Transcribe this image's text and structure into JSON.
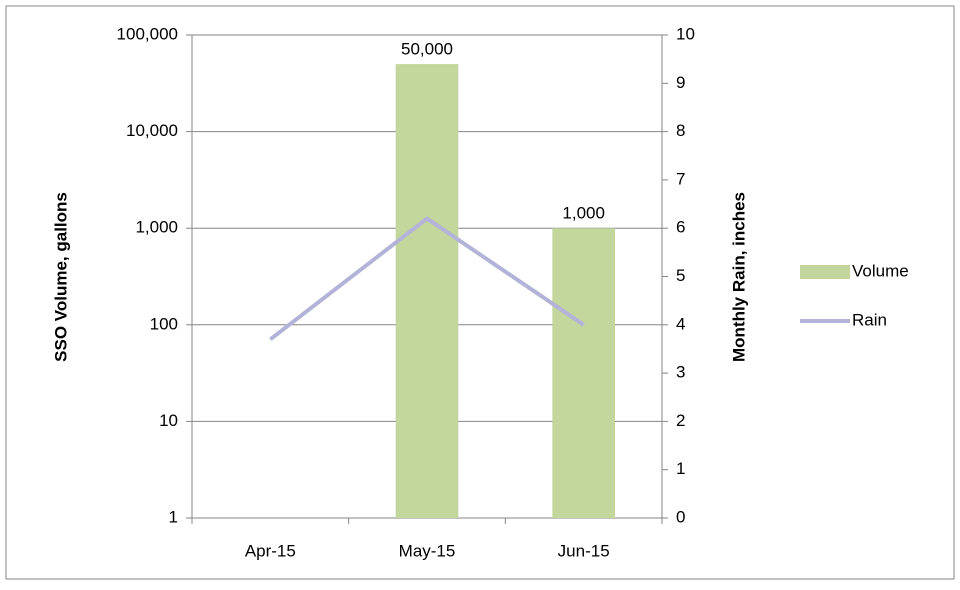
{
  "chart_data": {
    "type": "bar",
    "categories": [
      "Apr-15",
      "May-15",
      "Jun-15"
    ],
    "ylabel": "SSO Volume, gallons",
    "y2label": "Monthly Rain, inches",
    "ylim": [
      1,
      100000
    ],
    "log_scale": true,
    "yticks": [
      1,
      10,
      100,
      {
        "value": 1000,
        "label": "1,000"
      },
      {
        "value": 10000,
        "label": "10,000"
      },
      {
        "value": 100000,
        "label": "100,000"
      }
    ],
    "y2lim": [
      0,
      10
    ],
    "y2ticks": [
      0,
      1,
      2,
      3,
      4,
      5,
      6,
      7,
      8,
      9,
      10
    ],
    "grid": true,
    "legend": "right",
    "series": [
      {
        "name": "Volume",
        "type": "bar",
        "color": "#c3d69b",
        "values": [
          null,
          50000,
          1000
        ],
        "value_labels": [
          null,
          "50,000",
          "1,000"
        ]
      },
      {
        "name": "Rain",
        "type": "line",
        "axis": "y2",
        "color": "#b3b3d9",
        "values": [
          3.7,
          6.2,
          4.0
        ]
      }
    ]
  }
}
